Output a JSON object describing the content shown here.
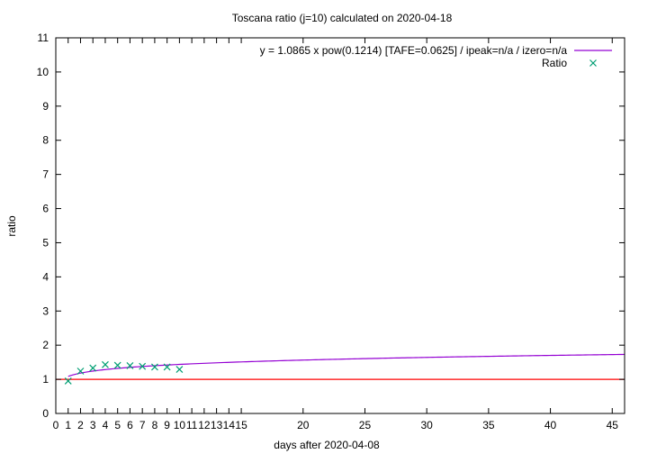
{
  "chart_data": {
    "type": "scatter",
    "title": "Toscana ratio (j=10) calculated on 2020-04-18",
    "xlabel": "days after 2020-04-08",
    "ylabel": "ratio",
    "xlim": [
      0,
      46
    ],
    "ylim": [
      0,
      11
    ],
    "x_ticks": [
      "0",
      "1",
      "2",
      "3",
      "4",
      "5",
      "6",
      "7",
      "8",
      "9",
      "10",
      "11",
      "12",
      "13",
      "14",
      "15",
      "20",
      "25",
      "30",
      "35",
      "40",
      "45"
    ],
    "y_ticks": [
      "0",
      "1",
      "2",
      "3",
      "4",
      "5",
      "6",
      "7",
      "8",
      "9",
      "10",
      "11"
    ],
    "legend_position": "top-right",
    "series": [
      {
        "name": "y = 1.0865 x pow(0.1214)  [TAFE=0.0625] / ipeak=n/a / izero=n/a",
        "kind": "line",
        "color": "#9400d3",
        "a": 1.0865,
        "b": 0.1214,
        "x_start": 1,
        "x_end": 46
      },
      {
        "name": "Ratio",
        "kind": "points",
        "color": "#009e73",
        "x": [
          1,
          2,
          3,
          4,
          5,
          6,
          7,
          8,
          9,
          10
        ],
        "y": [
          0.95,
          1.24,
          1.33,
          1.43,
          1.41,
          1.4,
          1.38,
          1.36,
          1.36,
          1.29
        ]
      }
    ],
    "reference_line": {
      "y": 1,
      "color": "#ff0000"
    }
  }
}
